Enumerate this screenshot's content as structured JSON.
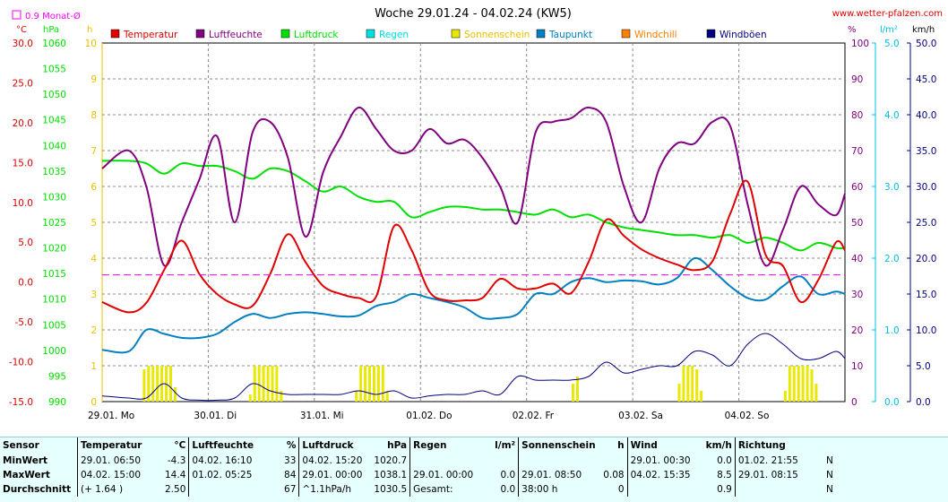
{
  "header": {
    "title": "Woche 29.01.24 - 04.02.24 (KW5)",
    "website": "www.wetter-pfalzen.com",
    "avg_marker_label": "0.9 Monat-Ø"
  },
  "units": {
    "temp": "°C",
    "press": "hPa",
    "sun": "h",
    "hum": "%",
    "rain": "l/m²",
    "wind": "km/h"
  },
  "legend": [
    {
      "label": "Temperatur",
      "color": "#e00000"
    },
    {
      "label": "Luftfeuchte",
      "color": "#800080"
    },
    {
      "label": "Luftdruck",
      "color": "#00e000"
    },
    {
      "label": "Regen",
      "color": "#00e0e0"
    },
    {
      "label": "Sonnenschein",
      "color": "#e8e800"
    },
    {
      "label": "Taupunkt",
      "color": "#0080c0"
    },
    {
      "label": "Windchill",
      "color": "#ff8000"
    },
    {
      "label": "Windböen",
      "color": "#000080"
    }
  ],
  "axes": {
    "temp_ticks": [
      "30.0",
      "25.0",
      "20.0",
      "15.0",
      "10.0",
      "5.0",
      "0.0",
      "-5.0",
      "-10.0",
      "-15.0"
    ],
    "press_ticks": [
      "1060",
      "1055",
      "1050",
      "1045",
      "1040",
      "1035",
      "1030",
      "1025",
      "1020",
      "1015",
      "1010",
      "1005",
      "1000",
      "995",
      "990"
    ],
    "sun_ticks": [
      "10",
      "9",
      "8",
      "7",
      "6",
      "5",
      "4",
      "3",
      "2",
      "1",
      "0"
    ],
    "hum_ticks": [
      "100",
      "90",
      "80",
      "70",
      "60",
      "50",
      "40",
      "30",
      "20",
      "10",
      "0"
    ],
    "rain_ticks": [
      "5.0",
      "4.0",
      "3.0",
      "2.0",
      "1.0",
      "0.0"
    ],
    "wind_ticks": [
      "50.0",
      "45.0",
      "40.0",
      "35.0",
      "30.0",
      "25.0",
      "20.0",
      "15.0",
      "10.0",
      "5.0",
      "0.0"
    ],
    "day_labels": [
      "29.01. Mo",
      "30.01. Di",
      "31.01. Mi",
      "01.02. Do",
      "02.02. Fr",
      "03.02. Sa",
      "04.02. So"
    ]
  },
  "chart_data": {
    "type": "line",
    "title": "Woche 29.01.24 - 04.02.24 (KW5)",
    "x_unit": "hours since 29.01. 00:00",
    "xlim": [
      0,
      168
    ],
    "monthly_avg_temp": 0.9,
    "series": [
      {
        "name": "Temperatur",
        "unit": "°C",
        "color": "#e00000",
        "x": [
          0,
          6,
          10,
          14,
          18,
          22,
          26,
          30,
          34,
          38,
          42,
          46,
          50,
          54,
          58,
          62,
          66,
          70,
          74,
          78,
          82,
          86,
          90,
          94,
          98,
          102,
          106,
          110,
          114,
          118,
          122,
          126,
          130,
          134,
          138,
          142,
          146,
          150,
          154,
          158,
          162,
          166,
          168
        ],
        "y": [
          -2.5,
          -3.8,
          -2.6,
          1.5,
          5.2,
          1.0,
          -1.5,
          -2.8,
          -3.0,
          1.0,
          6.0,
          2.5,
          -0.5,
          -1.5,
          -2.0,
          -1.8,
          7.0,
          4.0,
          -1.2,
          -2.3,
          -2.3,
          -2.0,
          0.4,
          -0.8,
          -0.8,
          -0.2,
          -1.4,
          2.5,
          7.8,
          5.8,
          4.1,
          3.0,
          2.2,
          1.5,
          2.6,
          8.5,
          12.6,
          3.5,
          2.0,
          -2.5,
          0.3,
          5.0,
          4.0
        ]
      },
      {
        "name": "Luftfeuchte",
        "unit": "%",
        "color": "#800080",
        "x": [
          0,
          6,
          10,
          14,
          18,
          22,
          26,
          30,
          34,
          38,
          42,
          46,
          50,
          54,
          58,
          62,
          66,
          70,
          74,
          78,
          82,
          86,
          90,
          94,
          98,
          102,
          106,
          110,
          114,
          118,
          122,
          126,
          130,
          134,
          138,
          142,
          146,
          150,
          154,
          158,
          162,
          166,
          168
        ],
        "y": [
          65,
          70,
          60,
          38,
          50,
          62,
          74,
          50,
          75,
          78,
          68,
          46,
          64,
          74,
          82,
          76,
          70,
          70,
          76,
          72,
          73,
          68,
          60,
          50,
          75,
          78,
          79,
          82,
          78,
          60,
          50,
          65,
          72,
          72,
          78,
          77,
          55,
          38,
          48,
          60,
          55,
          52,
          58
        ]
      },
      {
        "name": "Luftdruck",
        "unit": "hPa",
        "color": "#00e000",
        "x": [
          0,
          6,
          10,
          14,
          18,
          22,
          26,
          30,
          34,
          38,
          42,
          46,
          50,
          54,
          58,
          62,
          66,
          70,
          74,
          78,
          82,
          86,
          90,
          94,
          98,
          102,
          106,
          110,
          114,
          118,
          122,
          126,
          130,
          134,
          138,
          142,
          146,
          150,
          154,
          158,
          162,
          166,
          168
        ],
        "y": [
          1037,
          1037,
          1036.5,
          1034.5,
          1036.5,
          1036,
          1036,
          1035,
          1033.5,
          1035.5,
          1035,
          1033,
          1031,
          1032,
          1030,
          1029,
          1029,
          1026,
          1027,
          1028,
          1028,
          1027.5,
          1027.5,
          1027,
          1026.5,
          1027.5,
          1026,
          1026.5,
          1025,
          1024,
          1023.5,
          1023,
          1022.5,
          1022.5,
          1022,
          1022.5,
          1021,
          1022,
          1021,
          1019.5,
          1021,
          1020,
          1020
        ]
      },
      {
        "name": "Taupunkt",
        "unit": "°C",
        "color": "#0080c0",
        "x": [
          0,
          6,
          10,
          14,
          18,
          22,
          26,
          30,
          34,
          38,
          42,
          46,
          50,
          54,
          58,
          62,
          66,
          70,
          74,
          78,
          82,
          86,
          90,
          94,
          98,
          102,
          106,
          110,
          114,
          118,
          122,
          126,
          130,
          134,
          138,
          142,
          146,
          150,
          154,
          158,
          162,
          166,
          168
        ],
        "y": [
          -8.5,
          -8.7,
          -6.0,
          -6.5,
          -7.0,
          -7.0,
          -6.5,
          -5.0,
          -4.0,
          -4.5,
          -4.0,
          -3.8,
          -4.0,
          -4.3,
          -4.2,
          -3.0,
          -2.5,
          -1.5,
          -2.0,
          -2.5,
          -3.2,
          -4.5,
          -4.5,
          -4.0,
          -1.5,
          -1.5,
          0,
          0.5,
          0,
          0.2,
          0.1,
          -0.3,
          0.5,
          3.0,
          1.5,
          -0.5,
          -2.0,
          -2.2,
          -0.5,
          0.7,
          -1.5,
          -1.2,
          -1.5
        ]
      },
      {
        "name": "Windböen",
        "unit": "km/h",
        "color": "#000080",
        "x": [
          0,
          6,
          10,
          14,
          18,
          22,
          26,
          30,
          34,
          38,
          42,
          46,
          50,
          54,
          58,
          62,
          66,
          70,
          74,
          78,
          82,
          86,
          90,
          94,
          98,
          102,
          106,
          110,
          114,
          118,
          122,
          126,
          130,
          134,
          138,
          142,
          146,
          150,
          154,
          158,
          162,
          166,
          168
        ],
        "y": [
          0.8,
          0.5,
          0.5,
          2.5,
          0.5,
          0.2,
          0.2,
          0.5,
          2.5,
          1.5,
          1.0,
          1.0,
          1.0,
          1.0,
          1.5,
          1.0,
          1.5,
          0.5,
          0.8,
          1.0,
          1.0,
          1.5,
          1.0,
          3.5,
          3.0,
          3.0,
          3.0,
          3.5,
          5.5,
          4.0,
          4.5,
          5.0,
          5.0,
          7.0,
          6.5,
          5.0,
          8.0,
          9.5,
          8.0,
          6.0,
          6.0,
          7.0,
          6.0
        ]
      }
    ],
    "sunshine_bars": {
      "unit": "h",
      "color": "#e8e800",
      "x": [
        9.5,
        10.5,
        11.5,
        12.5,
        13.5,
        14.5,
        15.5,
        16.5,
        33.5,
        34.5,
        35.5,
        36.5,
        37.5,
        38.5,
        39.5,
        40.5,
        57.5,
        58.5,
        59.5,
        60.5,
        61.5,
        62.5,
        63.5,
        64.5,
        106.5,
        107.5,
        130.5,
        131.5,
        132.5,
        133.5,
        134.5,
        135.5,
        154.5,
        155.5,
        156.5,
        157.5,
        158.5,
        159.5,
        160.5,
        161.5
      ],
      "values": [
        0.9,
        1.0,
        1.0,
        1.0,
        1.0,
        1.0,
        1.0,
        0.4,
        0.2,
        1.0,
        1.0,
        1.0,
        1.0,
        1.0,
        1.0,
        0.3,
        0.3,
        1.0,
        1.0,
        1.0,
        1.0,
        1.0,
        1.0,
        0.3,
        0.5,
        0.7,
        0.5,
        1.0,
        1.0,
        1.0,
        0.9,
        0.3,
        0.3,
        1.0,
        1.0,
        1.0,
        1.0,
        1.0,
        0.9,
        0.5
      ]
    }
  },
  "stats": {
    "header": {
      "sensor": "Sensor",
      "temp": "Temperatur",
      "temp_unit": "°C",
      "hum": "Luftfeuchte",
      "hum_unit": "%",
      "press": "Luftdruck",
      "press_unit": "hPa",
      "rain": "Regen",
      "rain_unit": "l/m²",
      "sun": "Sonnenschein",
      "sun_unit": "h",
      "wind": "Wind",
      "wind_unit": "km/h",
      "dir": "Richtung"
    },
    "rows": [
      {
        "label": "MinWert",
        "temp_t": "29.01.  06:50",
        "temp_v": "-4.3",
        "hum_t": "04.02.  16:10",
        "hum_v": "33",
        "press_t": "04.02.  15:20",
        "press_v": "1020.7",
        "rain_t": "",
        "rain_v": "",
        "sun_t": "",
        "sun_v": "",
        "wind_t": "29.01.  00:30",
        "wind_v": "0.0",
        "dir_t": "01.02.  21:55",
        "dir_v": "N"
      },
      {
        "label": "MaxWert",
        "temp_t": "04.02.  15:00",
        "temp_v": "14.4",
        "hum_t": "01.02.  05:25",
        "hum_v": "84",
        "press_t": "29.01.  00:00",
        "press_v": "1038.1",
        "rain_t": "29.01.  00:00",
        "rain_v": "0.0",
        "sun_t": "29.01.  08:50",
        "sun_v": "0.08",
        "wind_t": "04.02.  15:35",
        "wind_v": "8.5",
        "dir_t": "29.01.  08:15",
        "dir_v": "N"
      },
      {
        "label": "Durchschnitt",
        "temp_t": "(+ 1.64 )",
        "temp_v": "2.50",
        "hum_t": "",
        "hum_v": "67",
        "press_t": "^1.1hPa/h",
        "press_v": "1030.5",
        "rain_t": "Gesamt:",
        "rain_v": "0.0",
        "sun_t": "38:00 h",
        "sun_v": "0",
        "wind_t": "",
        "wind_v": "0.9",
        "dir_t": "",
        "dir_v": "N"
      }
    ]
  }
}
